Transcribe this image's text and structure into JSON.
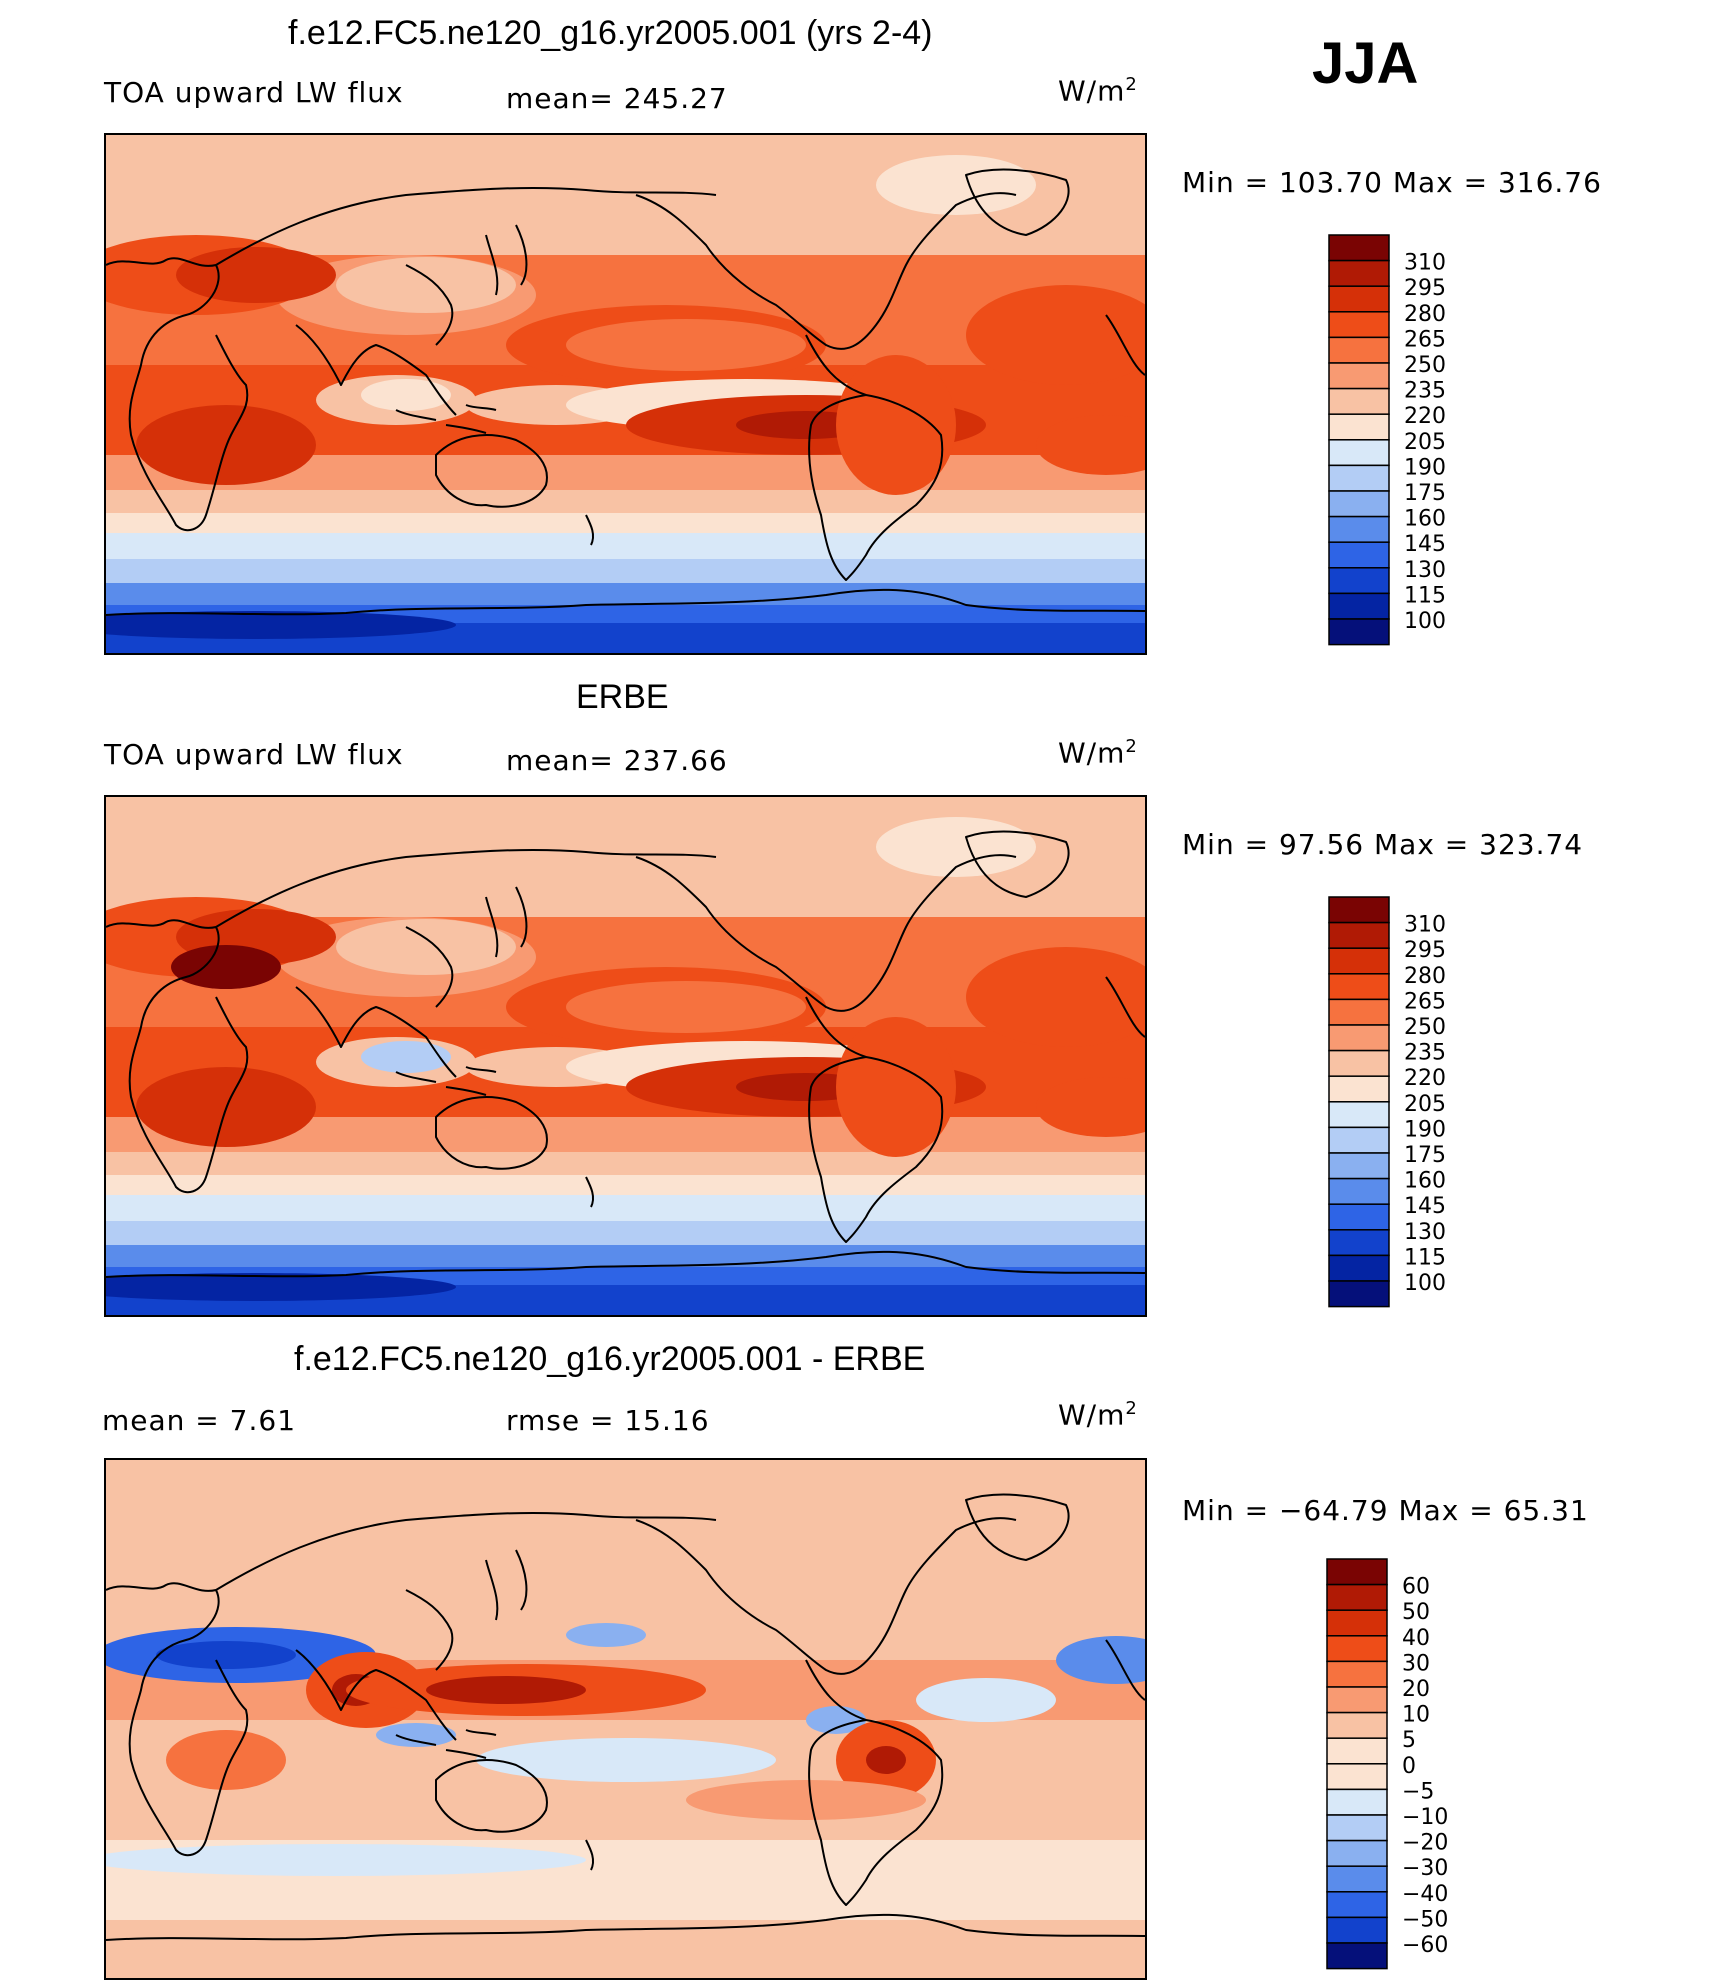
{
  "season": "JJA",
  "panels": [
    {
      "title": "f.e12.FC5.ne120_g16.yr2005.001 (yrs 2-4)",
      "left_label": "TOA upward LW flux",
      "center_label": "mean= 245.27",
      "units_label": "W/m",
      "units_sup": "2",
      "minmax": "Min = 103.70 Max = 316.76",
      "colorbar_ticks": [
        "310",
        "295",
        "280",
        "265",
        "250",
        "235",
        "220",
        "205",
        "190",
        "175",
        "160",
        "145",
        "130",
        "115",
        "100"
      ],
      "map_type": "model"
    },
    {
      "title": "ERBE",
      "left_label": "TOA upward LW flux",
      "center_label": "mean= 237.66",
      "units_label": "W/m",
      "units_sup": "2",
      "minmax": "Min =  97.56 Max = 323.74",
      "colorbar_ticks": [
        "310",
        "295",
        "280",
        "265",
        "250",
        "235",
        "220",
        "205",
        "190",
        "175",
        "160",
        "145",
        "130",
        "115",
        "100"
      ],
      "map_type": "obs"
    },
    {
      "title": "f.e12.FC5.ne120_g16.yr2005.001 - ERBE",
      "left_label": "mean =    7.61",
      "center_label": "rmse =   15.16",
      "units_label": "W/m",
      "units_sup": "2",
      "minmax": "Min = −64.79 Max =   65.31",
      "colorbar_ticks": [
        "60",
        "50",
        "40",
        "30",
        "20",
        "10",
        "5",
        "0",
        "−5",
        "−10",
        "−20",
        "−30",
        "−40",
        "−50",
        "−60"
      ],
      "map_type": "diff"
    }
  ],
  "colors": {
    "abs_scale": [
      "#7a0403",
      "#b01a05",
      "#d53008",
      "#ee4d18",
      "#f6723f",
      "#f89a72",
      "#f8c2a4",
      "#fbe3d1",
      "#d8e8f8",
      "#b3cdf5",
      "#8ab0f0",
      "#5a8ceb",
      "#2e64e6",
      "#1242cc",
      "#0424a3",
      "#05107a"
    ],
    "diff_scale": [
      "#7a0403",
      "#b01a05",
      "#d53008",
      "#ee4d18",
      "#f6723f",
      "#f89a72",
      "#f8c2a4",
      "#fbe3d1",
      "#fbe3d1",
      "#d8e8f8",
      "#b3cdf5",
      "#8ab0f0",
      "#5a8ceb",
      "#2e64e6",
      "#1242cc",
      "#05107a"
    ]
  },
  "chart_data": [
    {
      "type": "heatmap",
      "title": "f.e12.FC5.ne120_g16.yr2005.001 (yrs 2-4)",
      "variable": "TOA upward LW flux",
      "units": "W/m2",
      "season": "JJA",
      "mean": 245.27,
      "min": 103.7,
      "max": 316.76,
      "contour_levels": [
        100,
        115,
        130,
        145,
        160,
        175,
        190,
        205,
        220,
        235,
        250,
        265,
        280,
        295,
        310
      ]
    },
    {
      "type": "heatmap",
      "title": "ERBE",
      "variable": "TOA upward LW flux",
      "units": "W/m2",
      "season": "JJA",
      "mean": 237.66,
      "min": 97.56,
      "max": 323.74,
      "contour_levels": [
        100,
        115,
        130,
        145,
        160,
        175,
        190,
        205,
        220,
        235,
        250,
        265,
        280,
        295,
        310
      ]
    },
    {
      "type": "heatmap",
      "title": "f.e12.FC5.ne120_g16.yr2005.001 - ERBE",
      "units": "W/m2",
      "season": "JJA",
      "mean": 7.61,
      "rmse": 15.16,
      "min": -64.79,
      "max": 65.31,
      "contour_levels": [
        -60,
        -50,
        -40,
        -30,
        -20,
        -10,
        -5,
        0,
        5,
        10,
        20,
        30,
        40,
        50,
        60
      ]
    }
  ]
}
